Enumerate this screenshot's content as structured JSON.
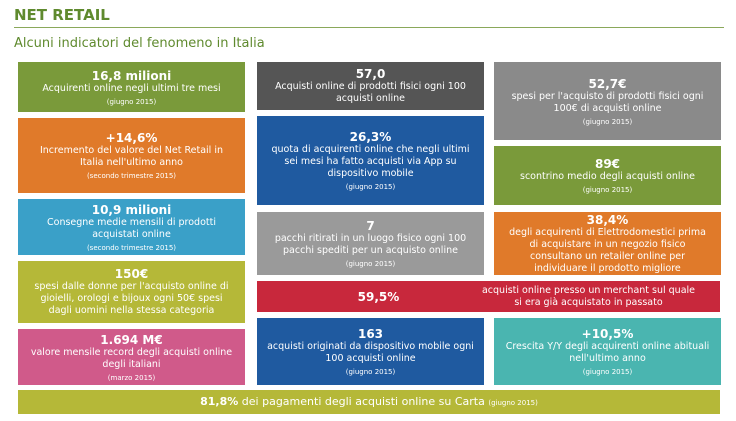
{
  "header": {
    "title": "NET RETAIL",
    "subtitle": "Alcuni indicatori del fenomeno in Italia"
  },
  "tiles": [
    {
      "value": "16,8 milioni",
      "text": "Acquirenti online negli ultimi tre mesi",
      "note": "(giugno 2015)"
    },
    {
      "value": "+14,6%",
      "text": "Incremento del valore del Net Retail in Italia nell'ultimo anno",
      "note": "(secondo trimestre 2015)"
    },
    {
      "value": "10,9 milioni",
      "text": "Consegne medie mensili di prodotti acquistati online",
      "note": "(secondo trimestre 2015)"
    },
    {
      "value": "150€",
      "text": "spesi dalle donne per l'acquisto online di gioielli, orologi e bijoux ogni 50€ spesi dagli uomini nella stessa categoria"
    },
    {
      "value": "1.694 M€",
      "text": "valore mensile record degli acquisti online degli italiani",
      "note": "(marzo 2015)"
    },
    {
      "value": "57,0",
      "text": "Acquisti online di prodotti fisici ogni 100 acquisti online"
    },
    {
      "value": "26,3%",
      "text": "quota di acquirenti online che negli ultimi sei mesi ha fatto acquisti via App su dispositivo mobile",
      "note": "(giugno 2015)"
    },
    {
      "value": "7",
      "text": "pacchi ritirati in un luogo fisico ogni 100 pacchi spediti per un acquisto online",
      "note": "(giugno 2015)"
    },
    {
      "value": "52,7€",
      "text": "spesi per l'acquisto di prodotti fisici ogni 100€ di acquisti online",
      "note": "(giugno 2015)"
    },
    {
      "value": "89€",
      "text": "scontrino medio degli acquisti online",
      "note": "(giugno 2015)"
    },
    {
      "value": "38,4%",
      "text": "degli acquirenti di Elettrodomestici prima di acquistare in un negozio fisico consultano un retailer online per individuare il prodotto migliore"
    },
    {
      "value": "59,5%",
      "text": "acquisti online presso un merchant sul quale si era già acquistato in passato"
    },
    {
      "value": "163",
      "text": "acquisti originati da dispositivo mobile ogni 100 acquisti online",
      "note": "(giugno 2015)"
    },
    {
      "value": "+10,5%",
      "text": "Crescita Y/Y degli acquirenti online abituali nell'ultimo anno",
      "note": "(giugno 2015)"
    }
  ],
  "footer": {
    "value": "81,8%",
    "text": "dei pagamenti degli acquisti online su Carta",
    "note": "(giugno 2015)"
  }
}
